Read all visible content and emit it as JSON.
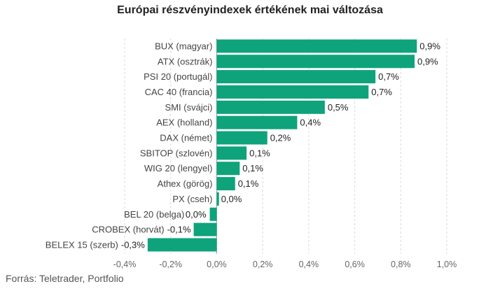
{
  "title": "Európai részvényindexek értékének mai változása",
  "source": "Forrás: Teletrader, Portfolio",
  "colors": {
    "bar": "#0ea37b",
    "grid": "#d9d9d9",
    "zero_line": "#9a9a9a"
  },
  "chart_data": {
    "type": "bar",
    "orientation": "horizontal",
    "title": "Európai részvényindexek értékének mai változása",
    "xlabel": "",
    "ylabel": "",
    "xlim": [
      -0.4,
      1.0
    ],
    "x_ticks": [
      -0.4,
      -0.2,
      0.0,
      0.2,
      0.4,
      0.6,
      0.8,
      1.0
    ],
    "x_tick_labels": [
      "-0,4%",
      "-0,2%",
      "0,0%",
      "0,2%",
      "0,4%",
      "0,6%",
      "0,8%",
      "1,0%"
    ],
    "grid": true,
    "categories": [
      "BUX (magyar)",
      "ATX (osztrák)",
      "PSI 20 (portugál)",
      "CAC 40 (francia)",
      "SMI (svájci)",
      "AEX (holland)",
      "DAX (német)",
      "SBITOP (szlovén)",
      "WIG 20 (lengyel)",
      "Athex (görög)",
      "PX (cseh)",
      "BEL 20 (belga)",
      "CROBEX (horvát)",
      "BELEX 15 (szerb)"
    ],
    "values": [
      0.87,
      0.86,
      0.69,
      0.66,
      0.47,
      0.35,
      0.22,
      0.13,
      0.1,
      0.08,
      0.01,
      -0.03,
      -0.1,
      -0.3
    ],
    "data_labels": [
      "0,9%",
      "0,9%",
      "0,7%",
      "0,7%",
      "0,5%",
      "0,4%",
      "0,2%",
      "0,1%",
      "0,1%",
      "0,1%",
      "0,0%",
      "0,0%",
      "-0,1%",
      "-0,3%"
    ]
  }
}
